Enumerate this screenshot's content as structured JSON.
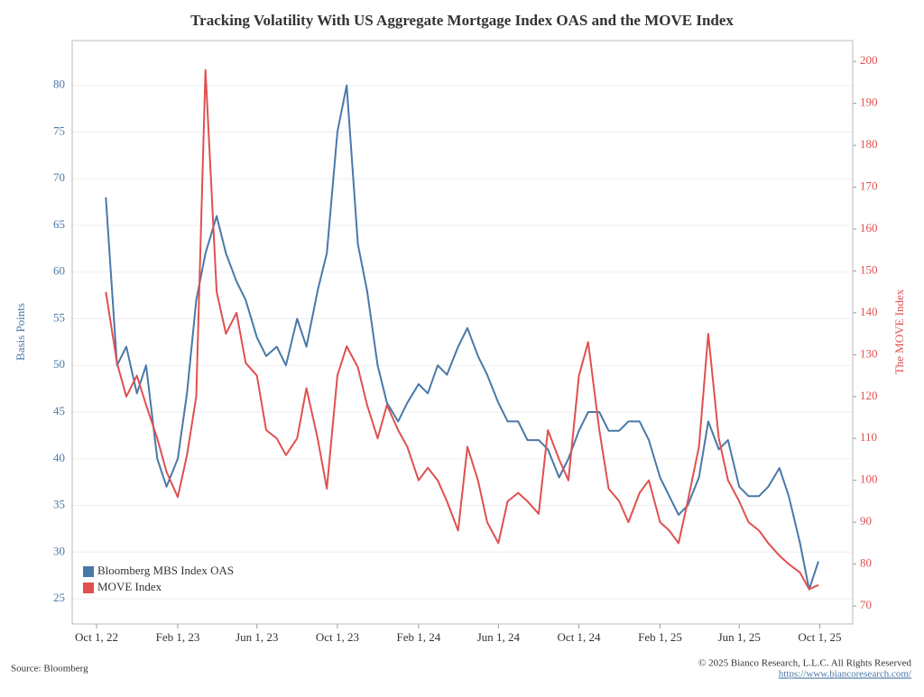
{
  "chart_data": {
    "type": "line",
    "title": "Tracking Volatility With US Aggregate Mortgage Index OAS and the MOVE Index",
    "y_label": "Basis Points",
    "y2_label": "The MOVE Index",
    "source": "Source: Bloomberg",
    "copyright": "© 2025 Bianco Research, L.L.C. All Rights Reserved",
    "url": "https://www.biancoresearch.com/",
    "legend": "lower left",
    "grid": true,
    "x": [
      "2022-10-15",
      "2022-11-01",
      "2022-11-15",
      "2022-12-01",
      "2022-12-15",
      "2023-01-01",
      "2023-01-15",
      "2023-02-01",
      "2023-02-15",
      "2023-03-01",
      "2023-03-15",
      "2023-04-01",
      "2023-04-15",
      "2023-05-01",
      "2023-05-15",
      "2023-06-01",
      "2023-06-15",
      "2023-07-01",
      "2023-07-15",
      "2023-08-01",
      "2023-08-15",
      "2023-09-01",
      "2023-09-15",
      "2023-10-01",
      "2023-10-15",
      "2023-11-01",
      "2023-11-15",
      "2023-12-01",
      "2023-12-15",
      "2024-01-01",
      "2024-01-15",
      "2024-02-01",
      "2024-02-15",
      "2024-03-01",
      "2024-03-15",
      "2024-04-01",
      "2024-04-15",
      "2024-05-01",
      "2024-05-15",
      "2024-06-01",
      "2024-06-15",
      "2024-07-01",
      "2024-07-15",
      "2024-08-01",
      "2024-08-15",
      "2024-09-01",
      "2024-09-15",
      "2024-10-01",
      "2024-10-15",
      "2024-11-01",
      "2024-11-15",
      "2024-12-01",
      "2024-12-15",
      "2025-01-01",
      "2025-01-15",
      "2025-02-01",
      "2025-02-15",
      "2025-03-01",
      "2025-03-15",
      "2025-04-01",
      "2025-04-15",
      "2025-05-01",
      "2025-05-15",
      "2025-06-01",
      "2025-06-15",
      "2025-07-01",
      "2025-07-15",
      "2025-08-01",
      "2025-08-15",
      "2025-09-01",
      "2025-09-15",
      "2025-09-29"
    ],
    "xlim": [
      "2022-08-25",
      "2025-11-20"
    ],
    "xticks": [
      {
        "value": "2022-10-01",
        "label": "Oct 1, 22"
      },
      {
        "value": "2023-02-01",
        "label": "Feb 1, 23"
      },
      {
        "value": "2023-06-01",
        "label": "Jun 1, 23"
      },
      {
        "value": "2023-10-01",
        "label": "Oct 1, 23"
      },
      {
        "value": "2024-02-01",
        "label": "Feb 1, 24"
      },
      {
        "value": "2024-06-01",
        "label": "Jun 1, 24"
      },
      {
        "value": "2024-10-01",
        "label": "Oct 1, 24"
      },
      {
        "value": "2025-02-01",
        "label": "Feb 1, 25"
      },
      {
        "value": "2025-06-01",
        "label": "Jun 1, 25"
      },
      {
        "value": "2025-10-01",
        "label": "Oct 1, 25"
      }
    ],
    "ylim": [
      22.3,
      84.8
    ],
    "yticks": [
      25,
      30,
      35,
      40,
      45,
      50,
      55,
      60,
      65,
      70,
      75,
      80
    ],
    "y2lim": [
      65.7,
      205
    ],
    "y2ticks": [
      70,
      80,
      90,
      100,
      110,
      120,
      130,
      140,
      150,
      160,
      170,
      180,
      190,
      200
    ],
    "series": [
      {
        "name": "Bloomberg MBS Index OAS",
        "color": "#4a78a8",
        "values": [
          68,
          50,
          52,
          47,
          50,
          40,
          37,
          40,
          47,
          57,
          62,
          66,
          62,
          59,
          57,
          53,
          51,
          52,
          50,
          55,
          52,
          58,
          62,
          75,
          80,
          63,
          58,
          50,
          46,
          44,
          46,
          48,
          47,
          50,
          49,
          52,
          54,
          51,
          49,
          46,
          44,
          44,
          42,
          42,
          41,
          38,
          40,
          43,
          45,
          45,
          43,
          43,
          44,
          44,
          42,
          38,
          36,
          34,
          35,
          38,
          44,
          41,
          42,
          37,
          36,
          36,
          37,
          39,
          36,
          31,
          26,
          29
        ]
      },
      {
        "name": "MOVE Index",
        "color": "#e05050",
        "axis": "y2",
        "values": [
          145,
          128,
          120,
          125,
          118,
          110,
          102,
          96,
          106,
          120,
          198,
          145,
          135,
          140,
          128,
          125,
          112,
          110,
          106,
          110,
          122,
          110,
          98,
          125,
          132,
          127,
          118,
          110,
          118,
          112,
          108,
          100,
          103,
          100,
          95,
          88,
          108,
          100,
          90,
          85,
          95,
          97,
          95,
          92,
          112,
          105,
          100,
          125,
          133,
          112,
          98,
          95,
          90,
          97,
          100,
          90,
          88,
          85,
          95,
          108,
          135,
          110,
          100,
          95,
          90,
          88,
          85,
          82,
          80,
          78,
          74,
          75
        ]
      }
    ]
  }
}
